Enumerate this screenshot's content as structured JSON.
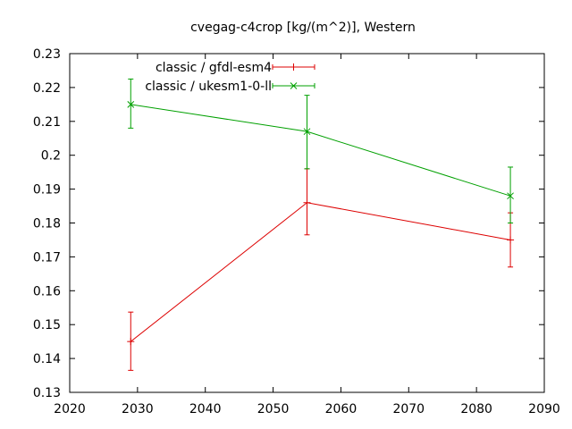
{
  "chart_data": {
    "type": "line",
    "title": "cvegag-c4crop [kg/(m^2)], Western",
    "xlabel": "",
    "ylabel": "",
    "xlim": [
      2020,
      2090
    ],
    "ylim": [
      0.13,
      0.23
    ],
    "xticks": [
      "2020",
      "2030",
      "2040",
      "2050",
      "2060",
      "2070",
      "2080",
      "2090"
    ],
    "yticks": [
      "0.13",
      "0.14",
      "0.15",
      "0.16",
      "0.17",
      "0.18",
      "0.19",
      "0.2",
      "0.21",
      "0.22",
      "0.23"
    ],
    "grid": false,
    "legend_position": "top-left",
    "series": [
      {
        "name": "classic / gfdl-esm4",
        "color": "#dd0000",
        "marker": "plus",
        "x": [
          2029,
          2055,
          2085
        ],
        "y": [
          0.145,
          0.186,
          0.175
        ],
        "err_low": [
          0.1365,
          0.1765,
          0.167
        ],
        "err_high": [
          0.1537,
          0.196,
          0.183
        ]
      },
      {
        "name": "classic / ukesm1-0-ll",
        "color": "#00a000",
        "marker": "x",
        "x": [
          2029,
          2055,
          2085
        ],
        "y": [
          0.215,
          0.207,
          0.188
        ],
        "err_low": [
          0.208,
          0.196,
          0.18
        ],
        "err_high": [
          0.2225,
          0.2177,
          0.1965
        ]
      }
    ]
  }
}
